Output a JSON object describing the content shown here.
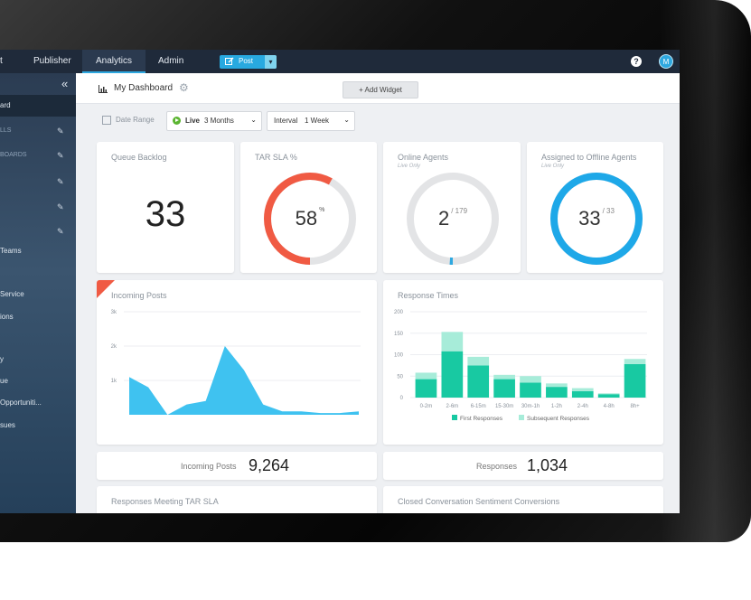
{
  "nav": {
    "items": [
      "t",
      "Publisher",
      "Analytics",
      "Admin"
    ],
    "post_label": "Post",
    "help": "?",
    "avatar_initial": "M"
  },
  "sidebar": {
    "collapse": "«",
    "items": [
      {
        "label": "ard"
      },
      {
        "label": "LLS"
      },
      {
        "label": "BOARDS"
      },
      {
        "label": "Teams"
      },
      {
        "label": "Service"
      },
      {
        "label": "ions"
      },
      {
        "label": "y"
      },
      {
        "label": "ue"
      },
      {
        "label": "Opportuniti..."
      },
      {
        "label": "sues"
      }
    ]
  },
  "header": {
    "title": "My Dashboard",
    "add_widget": "+ Add Widget"
  },
  "filters": {
    "date_range_label": "Date Range",
    "live_label": "Live",
    "live_value": "3 Months",
    "interval_label": "Interval",
    "interval_value": "1 Week"
  },
  "cards": {
    "queue_backlog": {
      "title": "Queue Backlog",
      "value": "33"
    },
    "tar_sla": {
      "title": "TAR SLA %",
      "value": "58",
      "suffix": "%",
      "fraction": 0.58,
      "color": "#f05a43"
    },
    "online_agents": {
      "title": "Online Agents",
      "subtitle": "Live Only",
      "value": "2",
      "denominator": "/ 179",
      "fraction": 0.011,
      "color": "#2ea8e0"
    },
    "offline_agents": {
      "title": "Assigned to Offline Agents",
      "subtitle": "Live Only",
      "value": "33",
      "denominator": "/ 33",
      "fraction": 1.0,
      "color": "#1ea8e8"
    },
    "incoming_posts_chart": {
      "title": "Incoming Posts"
    },
    "response_times_chart": {
      "title": "Response Times"
    },
    "incoming_posts_total": {
      "label": "Incoming Posts",
      "value": "9,264"
    },
    "responses_total": {
      "label": "Responses",
      "value": "1,034"
    },
    "tar_sla_responses": {
      "title": "Responses Meeting TAR SLA"
    },
    "sentiment": {
      "title": "Closed Conversation Sentiment Conversions"
    }
  },
  "chart_data": [
    {
      "type": "area",
      "title": "Incoming Posts",
      "x": [
        1,
        2,
        3,
        4,
        5,
        6,
        7,
        8,
        9,
        10,
        11,
        12,
        13
      ],
      "y": [
        1100,
        800,
        0,
        300,
        400,
        2000,
        1300,
        300,
        100,
        100,
        50,
        50,
        100
      ],
      "ylim": [
        0,
        3000
      ],
      "yticks": [
        "1k",
        "2k",
        "3k"
      ],
      "color": "#3fc2f0",
      "grid": true
    },
    {
      "type": "bar",
      "title": "Response Times",
      "categories": [
        "0-2m",
        "2-6m",
        "6-15m",
        "15-30m",
        "30m-1h",
        "1-2h",
        "2-4h",
        "4-8h",
        "8h+"
      ],
      "series": [
        {
          "name": "First Responses",
          "values": [
            43,
            108,
            75,
            43,
            35,
            25,
            15,
            8,
            78
          ],
          "color": "#18c9a2"
        },
        {
          "name": "Subsequent Responses",
          "values": [
            15,
            45,
            20,
            10,
            15,
            8,
            7,
            2,
            12
          ],
          "color": "#a7ecd9"
        }
      ],
      "stacked": true,
      "ylim": [
        0,
        200
      ],
      "yticks": [
        "0",
        "50",
        "100",
        "150",
        "200"
      ],
      "legend": "bottom",
      "grid": true
    }
  ]
}
